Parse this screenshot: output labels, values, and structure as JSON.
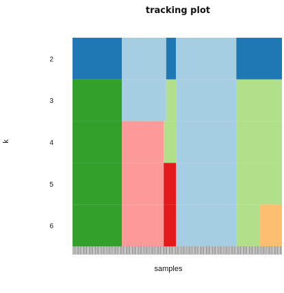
{
  "chart_data": {
    "type": "heatmap",
    "title": "tracking plot",
    "xlabel": "samples",
    "ylabel": "k",
    "y_ticks": [
      "2",
      "3",
      "4",
      "5",
      "6"
    ],
    "n_samples": 170,
    "rows": [
      {
        "k": "2",
        "segments": [
          {
            "from": 0,
            "to": 40,
            "color": "#1f78b4"
          },
          {
            "from": 40,
            "to": 76,
            "color": "#a6cee3"
          },
          {
            "from": 76,
            "to": 84,
            "color": "#1f78b4"
          },
          {
            "from": 84,
            "to": 133,
            "color": "#a6cee3"
          },
          {
            "from": 133,
            "to": 170,
            "color": "#1f78b4"
          }
        ]
      },
      {
        "k": "3",
        "segments": [
          {
            "from": 0,
            "to": 40,
            "color": "#33a02c"
          },
          {
            "from": 40,
            "to": 76,
            "color": "#a6cee3"
          },
          {
            "from": 76,
            "to": 84,
            "color": "#b2df8a"
          },
          {
            "from": 84,
            "to": 133,
            "color": "#a6cee3"
          },
          {
            "from": 133,
            "to": 170,
            "color": "#b2df8a"
          }
        ]
      },
      {
        "k": "4",
        "segments": [
          {
            "from": 0,
            "to": 40,
            "color": "#33a02c"
          },
          {
            "from": 40,
            "to": 74,
            "color": "#fb9a99"
          },
          {
            "from": 74,
            "to": 84,
            "color": "#b2df8a"
          },
          {
            "from": 84,
            "to": 133,
            "color": "#a6cee3"
          },
          {
            "from": 133,
            "to": 170,
            "color": "#b2df8a"
          }
        ]
      },
      {
        "k": "5",
        "segments": [
          {
            "from": 0,
            "to": 40,
            "color": "#33a02c"
          },
          {
            "from": 40,
            "to": 74,
            "color": "#fb9a99"
          },
          {
            "from": 74,
            "to": 84,
            "color": "#e31a1c"
          },
          {
            "from": 84,
            "to": 133,
            "color": "#a6cee3"
          },
          {
            "from": 133,
            "to": 170,
            "color": "#b2df8a"
          }
        ]
      },
      {
        "k": "6",
        "segments": [
          {
            "from": 0,
            "to": 40,
            "color": "#33a02c"
          },
          {
            "from": 40,
            "to": 74,
            "color": "#fb9a99"
          },
          {
            "from": 74,
            "to": 84,
            "color": "#e31a1c"
          },
          {
            "from": 84,
            "to": 133,
            "color": "#a6cee3"
          },
          {
            "from": 133,
            "to": 152,
            "color": "#b2df8a"
          },
          {
            "from": 152,
            "to": 170,
            "color": "#fdbf6f"
          }
        ]
      }
    ]
  }
}
